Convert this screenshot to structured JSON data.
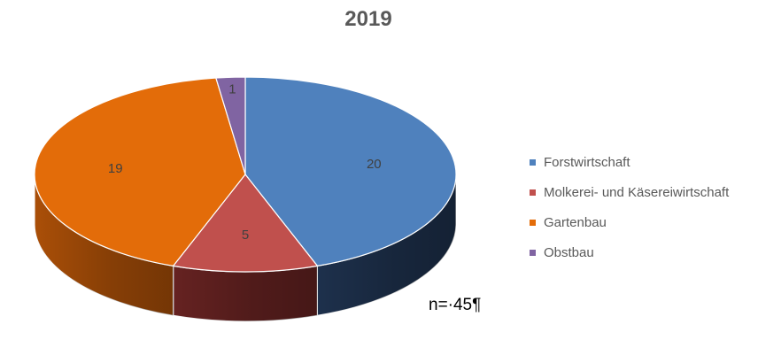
{
  "chart_data": {
    "type": "pie",
    "title": "2019",
    "categories": [
      "Forstwirtschaft",
      "Molkerei- und Käsereiwirtschaft",
      "Gartenbau",
      "Obstbau"
    ],
    "values": [
      20,
      5,
      19,
      1
    ],
    "colors": [
      "#4f81bd",
      "#c0504d",
      "#e36c09",
      "#8064a2"
    ],
    "side_colors": [
      "#1f3350",
      "#6b2423",
      "#b35308",
      "#4b3a62"
    ],
    "data_labels": [
      "20",
      "5",
      "19",
      "1"
    ],
    "legend_position": "right",
    "annotation": "n=·45¶"
  }
}
